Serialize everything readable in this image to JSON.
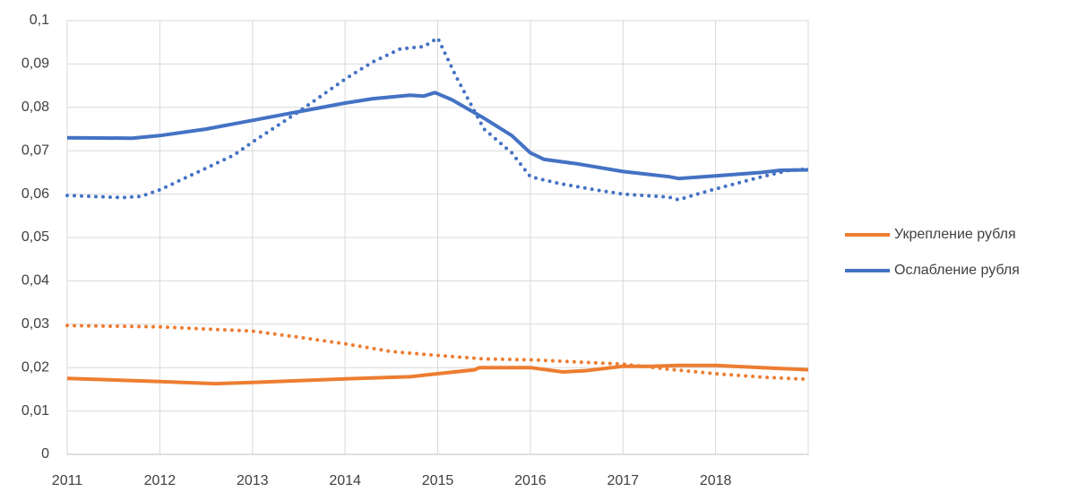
{
  "chart_data": {
    "type": "line",
    "xlim": [
      2011,
      2019
    ],
    "xticks": [
      2011,
      2012,
      2013,
      2014,
      2015,
      2016,
      2017,
      2018
    ],
    "ylim": [
      0,
      0.1
    ],
    "yticks": [
      0,
      {
        "value": 0.01,
        "label": "0,01"
      },
      {
        "value": 0.02,
        "label": "0,02"
      },
      {
        "value": 0.03,
        "label": "0,03"
      },
      {
        "value": 0.04,
        "label": "0,04"
      },
      {
        "value": 0.05,
        "label": "0,05"
      },
      {
        "value": 0.06,
        "label": "0,06"
      },
      {
        "value": 0.07,
        "label": "0,07"
      },
      {
        "value": 0.08,
        "label": "0,08"
      },
      {
        "value": 0.09,
        "label": "0,09"
      },
      {
        "value": 0.1,
        "label": "0,1"
      }
    ],
    "grid": true,
    "legend": "right",
    "series": [
      {
        "name": "Укрепление рубля",
        "color": "#ed7d31",
        "style": "solid",
        "x": [
          2011,
          2012,
          2012.6,
          2013,
          2014,
          2014.7,
          2015,
          2015.4,
          2015.45,
          2016,
          2016.35,
          2016.6,
          2017,
          2017.3,
          2017.6,
          2018,
          2018.5,
          2019
        ],
        "values": [
          0.0175,
          0.0168,
          0.0163,
          0.0166,
          0.0174,
          0.0179,
          0.0186,
          0.0195,
          0.02,
          0.02,
          0.019,
          0.0193,
          0.0203,
          0.0203,
          0.0205,
          0.0205,
          0.02,
          0.0195
        ]
      },
      {
        "name": "Ослабление рубля",
        "color": "#4472c4",
        "style": "solid",
        "x": [
          2011,
          2011.7,
          2012,
          2012.5,
          2013,
          2013.5,
          2014,
          2014.3,
          2014.7,
          2014.85,
          2014.97,
          2015.15,
          2015.5,
          2015.8,
          2016,
          2016.15,
          2016.5,
          2017,
          2017.5,
          2017.6,
          2018,
          2018.5,
          2018.7,
          2019
        ],
        "values": [
          0.073,
          0.0729,
          0.0735,
          0.075,
          0.077,
          0.079,
          0.081,
          0.082,
          0.0828,
          0.0826,
          0.0834,
          0.0818,
          0.0775,
          0.0735,
          0.0695,
          0.068,
          0.067,
          0.0652,
          0.064,
          0.0636,
          0.0642,
          0.065,
          0.0655,
          0.0656
        ]
      },
      {
        "color": "#ed7d31",
        "style": "dotted",
        "x": [
          2011,
          2012,
          2012.5,
          2013,
          2013.5,
          2014,
          2014.5,
          2015,
          2015.5,
          2016,
          2016.5,
          2017,
          2017.5,
          2018,
          2018.5,
          2019
        ],
        "values": [
          0.0297,
          0.0294,
          0.0289,
          0.0284,
          0.027,
          0.0255,
          0.0237,
          0.0228,
          0.022,
          0.0218,
          0.0213,
          0.0208,
          0.0196,
          0.0186,
          0.0178,
          0.0173
        ]
      },
      {
        "color": "#4472c4",
        "style": "dotted",
        "x": [
          2011,
          2011.6,
          2011.8,
          2012,
          2012.5,
          2012.8,
          2013,
          2013.5,
          2014,
          2014.3,
          2014.6,
          2014.85,
          2015,
          2015.2,
          2015.5,
          2015.8,
          2016,
          2016.3,
          2016.7,
          2017,
          2017.5,
          2017.6,
          2017.8,
          2018,
          2018.5,
          2018.8,
          2019
        ],
        "values": [
          0.0597,
          0.0592,
          0.0595,
          0.061,
          0.066,
          0.069,
          0.072,
          0.079,
          0.0865,
          0.0905,
          0.0935,
          0.094,
          0.096,
          0.087,
          0.075,
          0.0695,
          0.064,
          0.0625,
          0.061,
          0.06,
          0.0593,
          0.0587,
          0.06,
          0.0612,
          0.064,
          0.0655,
          0.0658
        ]
      }
    ]
  }
}
